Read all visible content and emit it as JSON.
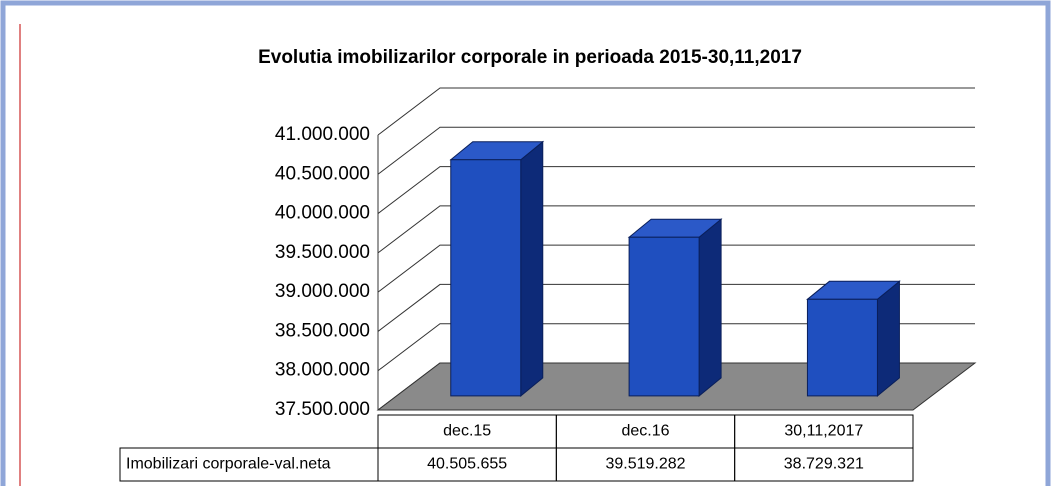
{
  "chart_data": {
    "type": "bar3d",
    "title": "Evolutia imobilizarilor corporale in perioada 2015-30,11,2017",
    "categories": [
      "dec.15",
      "dec.16",
      "30,11,2017"
    ],
    "series": [
      {
        "name": "Imobilizari corporale-val.neta",
        "color": "#1f4fbf",
        "values": [
          40505655,
          39519282,
          38729321
        ],
        "value_labels": [
          "40.505.655",
          "39.519.282",
          "38.729.321"
        ]
      }
    ],
    "ylim": [
      37500000,
      41000000
    ],
    "yticks": [
      {
        "value": 37500000,
        "label": "37.500.000"
      },
      {
        "value": 38000000,
        "label": "38.000.000"
      },
      {
        "value": 38500000,
        "label": "38.500.000"
      },
      {
        "value": 39000000,
        "label": "39.000.000"
      },
      {
        "value": 39500000,
        "label": "39.500.000"
      },
      {
        "value": 40000000,
        "label": "40.000.000"
      },
      {
        "value": 40500000,
        "label": "40.500.000"
      },
      {
        "value": 41000000,
        "label": "41.000.000"
      }
    ],
    "grid": true
  }
}
